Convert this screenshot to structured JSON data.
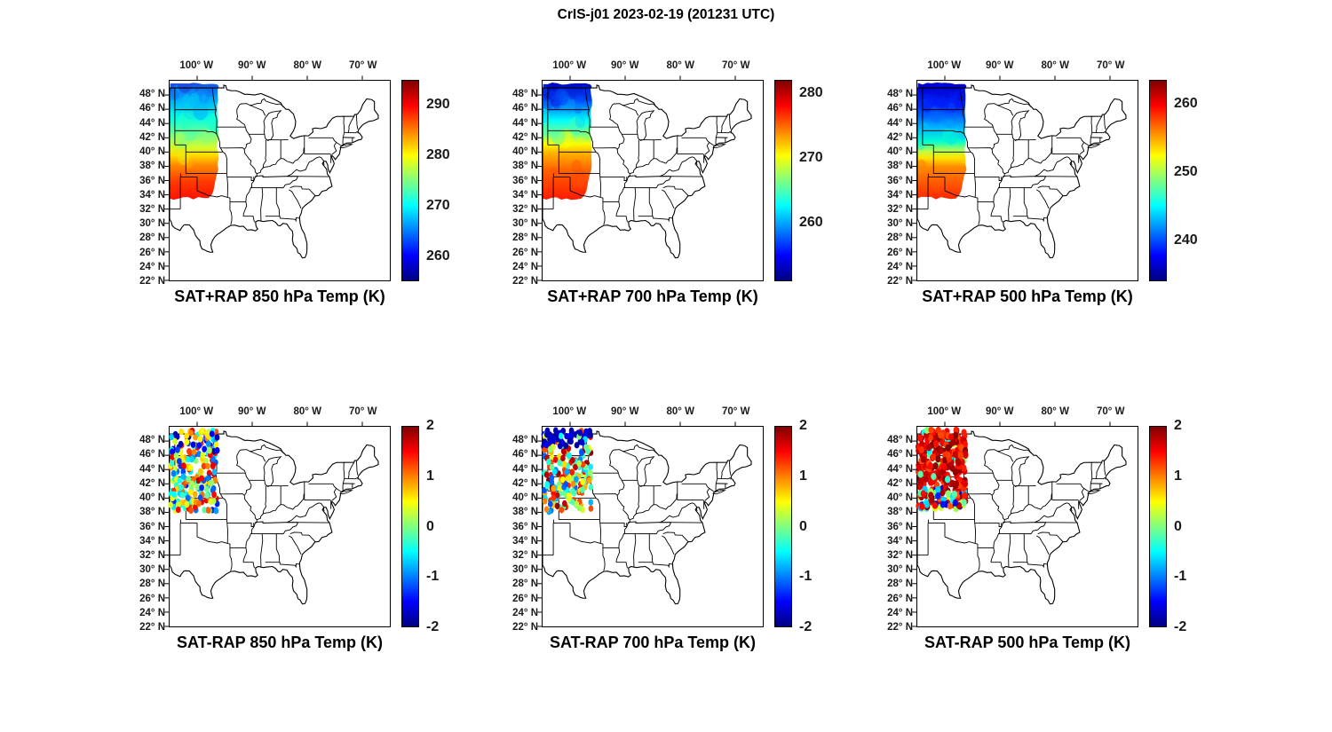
{
  "chart_data": {
    "type": "map-grid",
    "figure_title": "CrIS-j01 2023-02-19 (201231 UTC)",
    "extent": {
      "lon_min": -105,
      "lon_max": -65,
      "lat_min": 22,
      "lat_max": 50
    },
    "axes": {
      "lon_ticks": [
        {
          "label": "100° W",
          "lon": -100
        },
        {
          "label": "90° W",
          "lon": -90
        },
        {
          "label": "80° W",
          "lon": -80
        },
        {
          "label": "70° W",
          "lon": -70
        }
      ],
      "lat_ticks": [
        {
          "label": "48° N",
          "lat": 48
        },
        {
          "label": "46° N",
          "lat": 46
        },
        {
          "label": "44° N",
          "lat": 44
        },
        {
          "label": "42° N",
          "lat": 42
        },
        {
          "label": "40° N",
          "lat": 40
        },
        {
          "label": "38° N",
          "lat": 38
        },
        {
          "label": "36° N",
          "lat": 36
        },
        {
          "label": "34° N",
          "lat": 34
        },
        {
          "label": "32° N",
          "lat": 32
        },
        {
          "label": "30° N",
          "lat": 30
        },
        {
          "label": "28° N",
          "lat": 28
        },
        {
          "label": "26° N",
          "lat": 26
        },
        {
          "label": "24° N",
          "lat": 24
        },
        {
          "label": "22° N",
          "lat": 22
        }
      ]
    },
    "swath_region": {
      "lon_west": -105,
      "lon_east": -96.0,
      "lat_north": 49.7,
      "lat_south": 33.3
    },
    "panels": [
      {
        "id": "sat-plus-rap-850",
        "title": "SAT+RAP 850 hPa Temp (K)",
        "kind": "swath",
        "seed": 11,
        "colorbar": {
          "min": 255,
          "max": 295,
          "ticks": [
            "290",
            "280",
            "270",
            "260"
          ],
          "tick_values": [
            290,
            280,
            270,
            260
          ]
        },
        "field_stops": [
          [
            0,
            "#1f49e0"
          ],
          [
            0.12,
            "#009eff"
          ],
          [
            0.3,
            "#00ffe6"
          ],
          [
            0.45,
            "#80ff80"
          ],
          [
            0.55,
            "#d1ff2e"
          ],
          [
            0.62,
            "#ffdb00"
          ],
          [
            0.7,
            "#ff8a00"
          ],
          [
            0.85,
            "#ff3800"
          ],
          [
            1,
            "#ff0f00"
          ]
        ]
      },
      {
        "id": "sat-plus-rap-700",
        "title": "SAT+RAP 700 hPa Temp (K)",
        "kind": "swath",
        "seed": 22,
        "colorbar": {
          "min": 251,
          "max": 282,
          "ticks": [
            "280",
            "270",
            "260"
          ],
          "tick_values": [
            280,
            270,
            260
          ]
        },
        "field_stops": [
          [
            0,
            "#0000bd"
          ],
          [
            0.15,
            "#004dff"
          ],
          [
            0.32,
            "#00fffa"
          ],
          [
            0.45,
            "#80ff80"
          ],
          [
            0.52,
            "#faff00"
          ],
          [
            0.6,
            "#ffb300"
          ],
          [
            0.75,
            "#ff6100"
          ],
          [
            1,
            "#ff1900"
          ]
        ]
      },
      {
        "id": "sat-plus-rap-500",
        "title": "SAT+RAP 500 hPa Temp (K)",
        "kind": "swath",
        "seed": 33,
        "colorbar": {
          "min": 234,
          "max": 263.5,
          "ticks": [
            "260",
            "250",
            "240"
          ],
          "tick_values": [
            260,
            250,
            240
          ]
        },
        "field_stops": [
          [
            0,
            "#0000cc"
          ],
          [
            0.2,
            "#0024ff"
          ],
          [
            0.38,
            "#00b3ff"
          ],
          [
            0.5,
            "#00ffd1"
          ],
          [
            0.58,
            "#b3ff4d"
          ],
          [
            0.64,
            "#ffe600"
          ],
          [
            0.72,
            "#ff8a00"
          ],
          [
            1,
            "#ff2400"
          ]
        ]
      },
      {
        "id": "sat-minus-rap-850",
        "title": "SAT-RAP 850 hPa Temp (K)",
        "kind": "scatter",
        "mode": "mix",
        "seed": 101,
        "count": 250,
        "r": 4.6,
        "lon_min": -104.85,
        "lon_max": -96.2,
        "lat_min": 38.2,
        "lat_max": 49.55,
        "colorbar": {
          "min": -2,
          "max": 2,
          "ticks": [
            "2",
            "1",
            "0",
            "-1",
            "-2"
          ],
          "tick_values": [
            2,
            1,
            0,
            -1,
            -2
          ]
        }
      },
      {
        "id": "sat-minus-rap-700",
        "title": "SAT-RAP 700 hPa Temp (K)",
        "kind": "scatter",
        "mode": "coldtop",
        "seed": 102,
        "count": 260,
        "r": 4.6,
        "lon_min": -104.85,
        "lon_max": -96.2,
        "lat_min": 38.0,
        "lat_max": 49.55,
        "colorbar": {
          "min": -2,
          "max": 2,
          "ticks": [
            "2",
            "1",
            "0",
            "-1",
            "-2"
          ],
          "tick_values": [
            2,
            1,
            0,
            -1,
            -2
          ]
        }
      },
      {
        "id": "sat-minus-rap-500",
        "title": "SAT-RAP 500 hPa Temp (K)",
        "kind": "scatter",
        "mode": "warm",
        "seed": 103,
        "count": 330,
        "r": 5.0,
        "lon_min": -104.85,
        "lon_max": -96.2,
        "lat_min": 38.5,
        "lat_max": 49.55,
        "colorbar": {
          "min": -2,
          "max": 2,
          "ticks": [
            "2",
            "1",
            "0",
            "-1",
            "-2"
          ],
          "tick_values": [
            2,
            1,
            0,
            -1,
            -2
          ]
        }
      }
    ]
  }
}
